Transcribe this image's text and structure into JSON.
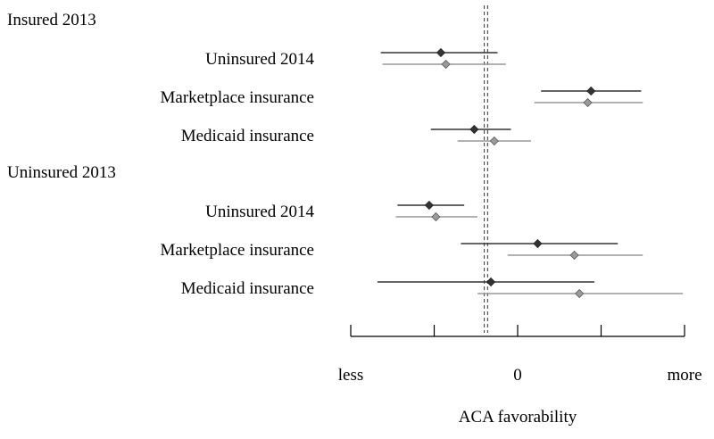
{
  "chart_data": {
    "type": "scatter",
    "subtype": "coefficient-plot",
    "title": "",
    "xlabel": "ACA favorability",
    "ylabel": "",
    "xlim": [
      -1.0,
      1.0
    ],
    "x_ticks": [
      -1.0,
      -0.5,
      0,
      0.5,
      1.0
    ],
    "x_tick_labels": [
      "less",
      "",
      "0",
      "",
      "more"
    ],
    "reference_lines": [
      -0.2,
      -0.18
    ],
    "groups": [
      {
        "label": "Insured 2013",
        "rows": [
          {
            "label": "Uninsured 2014",
            "estimates": [
              {
                "series": "dark",
                "x": -0.46,
                "ci": [
                  -0.82,
                  -0.12
                ]
              },
              {
                "series": "light",
                "x": -0.43,
                "ci": [
                  -0.81,
                  -0.07
                ]
              }
            ]
          },
          {
            "label": "Marketplace insurance",
            "estimates": [
              {
                "series": "dark",
                "x": 0.44,
                "ci": [
                  0.14,
                  0.74
                ]
              },
              {
                "series": "light",
                "x": 0.42,
                "ci": [
                  0.1,
                  0.75
                ]
              }
            ]
          },
          {
            "label": "Medicaid insurance",
            "estimates": [
              {
                "series": "dark",
                "x": -0.26,
                "ci": [
                  -0.52,
                  -0.04
                ]
              },
              {
                "series": "light",
                "x": -0.14,
                "ci": [
                  -0.36,
                  0.08
                ]
              }
            ]
          }
        ]
      },
      {
        "label": "Uninsured 2013",
        "rows": [
          {
            "label": "Uninsured 2014",
            "estimates": [
              {
                "series": "dark",
                "x": -0.53,
                "ci": [
                  -0.72,
                  -0.32
                ]
              },
              {
                "series": "light",
                "x": -0.49,
                "ci": [
                  -0.73,
                  -0.24
                ]
              }
            ]
          },
          {
            "label": "Marketplace insurance",
            "estimates": [
              {
                "series": "dark",
                "x": 0.12,
                "ci": [
                  -0.34,
                  0.6
                ]
              },
              {
                "series": "light",
                "x": 0.34,
                "ci": [
                  -0.06,
                  0.75
                ]
              }
            ]
          },
          {
            "label": "Medicaid insurance",
            "estimates": [
              {
                "series": "dark",
                "x": -0.16,
                "ci": [
                  -0.84,
                  0.46
                ]
              },
              {
                "series": "light",
                "x": 0.37,
                "ci": [
                  -0.24,
                  0.99
                ]
              }
            ]
          }
        ]
      }
    ],
    "colors": {
      "dark": "#333333",
      "light": "#999999",
      "dark_marker": "#333333",
      "light_marker": "#9a9a9a"
    }
  }
}
